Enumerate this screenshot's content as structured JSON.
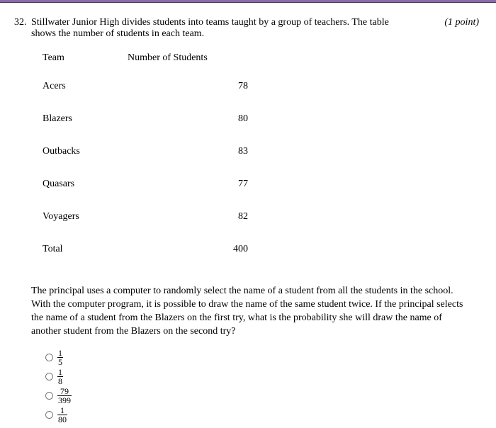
{
  "topbar_color": "#8a6aa8",
  "question": {
    "number": "32.",
    "text_line1": "Stillwater Junior High divides students into teams taught by a group of teachers. The table",
    "text_line2": "shows the number of students in each team.",
    "points": "(1 point)"
  },
  "table": {
    "header_team": "Team",
    "header_number": "Number of Students",
    "rows": [
      {
        "team": "Acers",
        "count": "78"
      },
      {
        "team": "Blazers",
        "count": "80"
      },
      {
        "team": "Outbacks",
        "count": "83"
      },
      {
        "team": "Quasars",
        "count": "77"
      },
      {
        "team": "Voyagers",
        "count": "82"
      },
      {
        "team": "Total",
        "count": "400"
      }
    ]
  },
  "paragraph": " The principal uses a computer to randomly select the name of a student from all the students in the school. With the computer program, it is possible to draw the name of the same student twice. If the principal selects the name of a student from the Blazers on the first try, what is the probability she will draw the name of another student from the Blazers on the second try?",
  "options": [
    {
      "num": "1",
      "den": "5"
    },
    {
      "num": "1",
      "den": "8"
    },
    {
      "num": "79",
      "den": "399"
    },
    {
      "num": "1",
      "den": "80"
    }
  ]
}
